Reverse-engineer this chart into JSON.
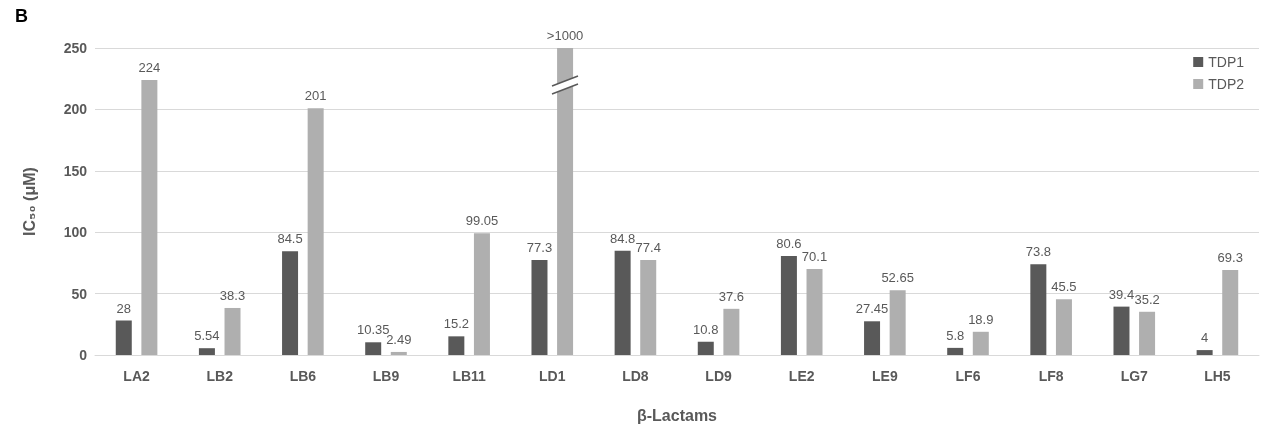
{
  "chart_data": {
    "type": "bar",
    "title": "B",
    "xlabel": "β-Lactams",
    "ylabel": "IC₅₀ (μM)",
    "categories": [
      "LA2",
      "LB2",
      "LB6",
      "LB9",
      "LB11",
      "LD1",
      "LD8",
      "LD9",
      "LE2",
      "LE9",
      "LF6",
      "LF8",
      "LG7",
      "LH5"
    ],
    "series": [
      {
        "name": "TDP1",
        "color": "#595959",
        "values": [
          28,
          5.54,
          84.5,
          10.35,
          15.2,
          77.3,
          84.8,
          10.8,
          80.6,
          27.45,
          5.8,
          73.8,
          39.4,
          4
        ],
        "value_labels": [
          "28",
          "5.54",
          "84.5",
          "10.35",
          "15.2",
          "77.3",
          "84.8",
          "10.8",
          "80.6",
          "27.45",
          "5.8",
          "73.8",
          "39.4",
          "4"
        ]
      },
      {
        "name": "TDP2",
        "color": "#afafaf",
        "values": [
          224,
          38.3,
          201,
          2.49,
          99.05,
          250,
          77.4,
          37.6,
          70.1,
          52.65,
          18.9,
          45.5,
          35.2,
          69.3
        ],
        "value_labels": [
          "224",
          "38.3",
          "201",
          "2.49",
          "99.05",
          ">1000",
          "77.4",
          "37.6",
          "70.1",
          "52.65",
          "18.9",
          "45.5",
          "35.2",
          "69.3"
        ]
      }
    ],
    "ylim": [
      0,
      250
    ],
    "yticks": [
      0,
      50,
      100,
      150,
      200,
      250
    ],
    "grid": "y",
    "legend": "top right"
  }
}
